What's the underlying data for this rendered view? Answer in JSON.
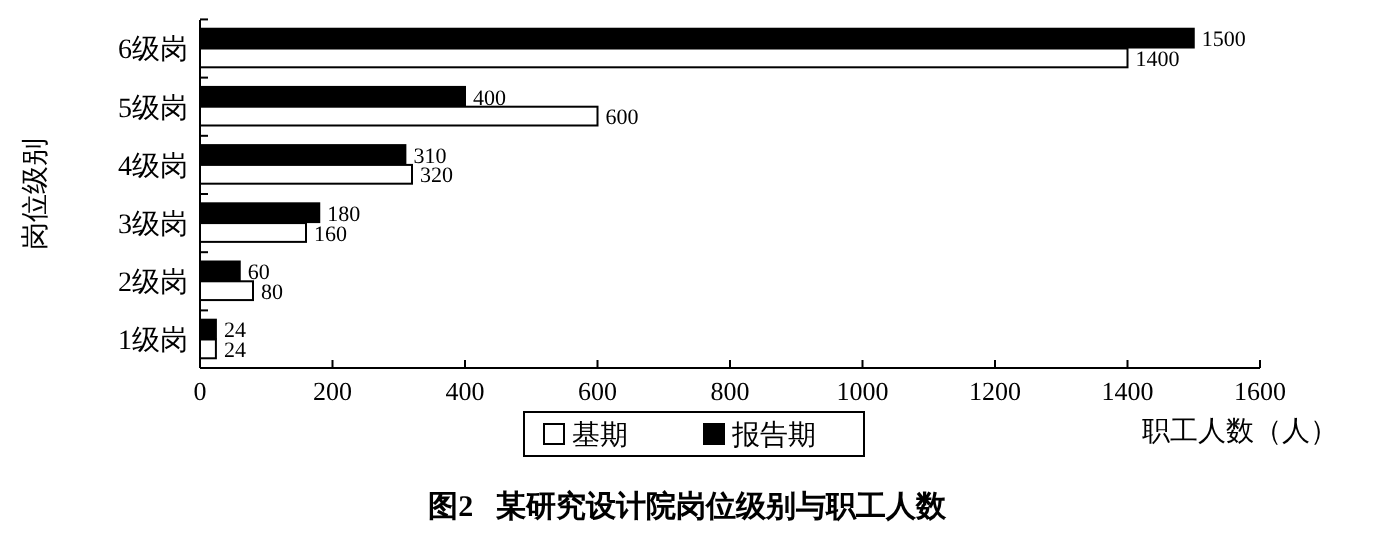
{
  "chart_data": {
    "type": "bar",
    "orientation": "horizontal",
    "title": "图2   某研究设计院岗位级别与职工人数",
    "xlabel": "职工人数（人）",
    "ylabel": "岗位级别",
    "categories": [
      "6级岗",
      "5级岗",
      "4级岗",
      "3级岗",
      "2级岗",
      "1级岗"
    ],
    "series": [
      {
        "name": "基期",
        "color": "#ffffff",
        "values": [
          1400,
          600,
          320,
          160,
          80,
          24
        ]
      },
      {
        "name": "报告期",
        "color": "#000000",
        "values": [
          1500,
          400,
          310,
          180,
          60,
          24
        ]
      }
    ],
    "xlim": [
      0,
      1600
    ],
    "xticks": [
      0,
      200,
      400,
      600,
      800,
      1000,
      1200,
      1400,
      1600
    ],
    "data_labels": true,
    "legend": "bottom",
    "grid": false
  }
}
